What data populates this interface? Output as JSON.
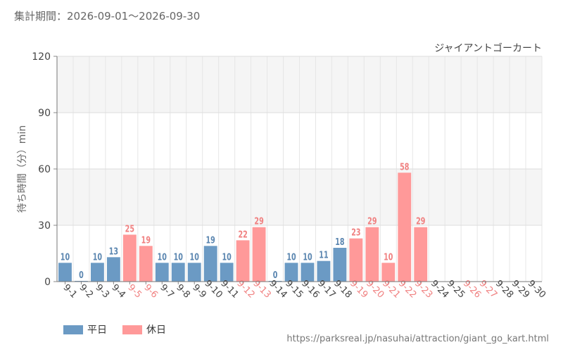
{
  "header": {
    "period": "集計期間：2026-09-01～2026-09-30"
  },
  "legend": {
    "weekday": "平日",
    "holiday": "休日"
  },
  "footer": {
    "url": "https://parksreal.jp/nasuhai/attraction/giant_go_kart.html"
  },
  "colors": {
    "weekday": "#6b9ac4",
    "holiday": "#ff9999",
    "weekday_label": "#5b86b0",
    "holiday_label": "#f08080"
  },
  "chart_data": {
    "type": "bar",
    "title": "ジャイアントゴーカート",
    "ylabel": "待ち時間（分）min",
    "xlabel": "",
    "ylim": [
      0,
      120
    ],
    "yticks": [
      0,
      30,
      60,
      90,
      120
    ],
    "grid": true,
    "legend_position": "bottom-left",
    "categories": [
      "9-1",
      "9-2",
      "9-3",
      "9-4",
      "9-5",
      "9-6",
      "9-7",
      "9-8",
      "9-9",
      "9-10",
      "9-11",
      "9-12",
      "9-13",
      "9-14",
      "9-15",
      "9-16",
      "9-17",
      "9-18",
      "9-19",
      "9-20",
      "9-21",
      "9-22",
      "9-23",
      "9-24",
      "9-25",
      "9-26",
      "9-27",
      "9-28",
      "9-29",
      "9-30"
    ],
    "values": [
      10,
      0,
      10,
      13,
      25,
      19,
      10,
      10,
      10,
      19,
      10,
      22,
      29,
      0,
      10,
      10,
      11,
      18,
      23,
      29,
      10,
      58,
      29,
      null,
      null,
      null,
      null,
      null,
      null,
      null
    ],
    "day_type": [
      "weekday",
      "weekday",
      "weekday",
      "weekday",
      "holiday",
      "holiday",
      "weekday",
      "weekday",
      "weekday",
      "weekday",
      "weekday",
      "holiday",
      "holiday",
      "weekday",
      "weekday",
      "weekday",
      "weekday",
      "weekday",
      "holiday",
      "holiday",
      "holiday",
      "holiday",
      "holiday",
      "weekday",
      "weekday",
      "holiday",
      "holiday",
      "weekday",
      "weekday",
      "weekday"
    ]
  }
}
